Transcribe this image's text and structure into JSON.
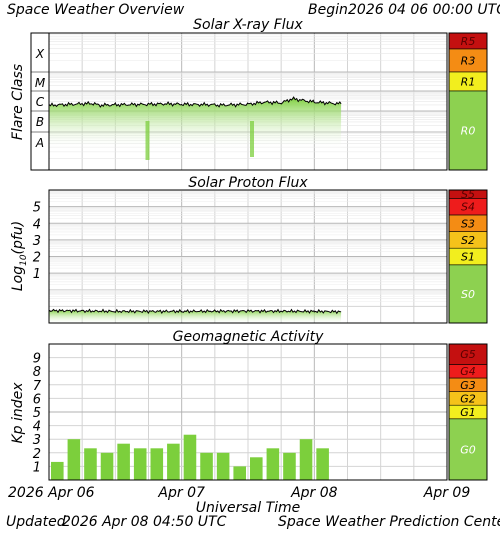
{
  "header": {
    "left": "Space Weather Overview",
    "begin_label": "Begin",
    "begin_value": "2026 04 06 00:00 UTC"
  },
  "footer": {
    "updated_label": "Updated",
    "updated_value": "2026 Apr 08 04:50 UTC",
    "credit": "Space Weather Prediction Center"
  },
  "colors": {
    "data_green": "#7ccf3c",
    "scale_green": "#8dd150",
    "yellow": "#f2ee1e",
    "yellow_orange": "#f5c21a",
    "orange": "#f48c14",
    "red": "#ee1c1c",
    "dark_red": "#c41010",
    "gridline": "#d4d4d4"
  },
  "chart_data": [
    {
      "type": "line",
      "title": "Solar X-ray Flux",
      "ylabel": "Flare Class",
      "class_labels": [
        "A",
        "B",
        "C",
        "M",
        "X"
      ],
      "scale_labels": [
        "R0",
        "R1",
        "R3",
        "R5"
      ],
      "x": [
        "2026-04-06 00:00",
        "2026-04-06 06:00",
        "2026-04-06 08:00",
        "2026-04-06 09:00",
        "2026-04-06 12:00",
        "2026-04-06 18:00",
        "2026-04-06 21:00",
        "2026-04-07 00:00",
        "2026-04-07 06:00",
        "2026-04-07 06:30",
        "2026-04-07 12:00",
        "2026-04-07 15:00",
        "2026-04-07 18:00",
        "2026-04-07 20:00",
        "2026-04-08 00:00",
        "2026-04-08 04:50"
      ],
      "series": [
        {
          "values": [
            2.3e-07,
            2.6e-07,
            2.7e-07,
            2.3e-07,
            2.4e-07,
            2.5e-07,
            2.6e-07,
            2.5e-07,
            2.4e-07,
            2.3e-07,
            2.5e-07,
            3e-07,
            2.8e-07,
            4e-07,
            3e-07,
            2.6e-07
          ]
        }
      ],
      "ylim": [
        "A",
        "X"
      ]
    },
    {
      "type": "line",
      "title": "Solar Proton Flux",
      "ylabel": "Log10(pfu)",
      "ylabel_main": "Log",
      "ylabel_sub": "10",
      "ylabel_unit": "(pfu)",
      "yticks": [
        "1",
        "2",
        "3",
        "4",
        "5"
      ],
      "scale_labels": [
        "S0",
        "S1",
        "S2",
        "S3",
        "S4",
        "S5"
      ],
      "x": [
        "2026-04-06 00:00",
        "2026-04-06 12:00",
        "2026-04-07 00:00",
        "2026-04-07 12:00",
        "2026-04-08 00:00",
        "2026-04-08 04:50"
      ],
      "series": [
        {
          "values": [
            -1.25,
            -1.3,
            -1.3,
            -1.28,
            -1.3,
            -1.32
          ]
        }
      ],
      "ylim": [
        -2,
        6
      ]
    },
    {
      "type": "bar",
      "title": "Geomagnetic Activity",
      "ylabel": "Kp index",
      "yticks": [
        "1",
        "2",
        "3",
        "4",
        "5",
        "6",
        "7",
        "8",
        "9"
      ],
      "scale_labels": [
        "G0",
        "G1",
        "G2",
        "G3",
        "G4",
        "G5"
      ],
      "values": [
        1.33,
        3.0,
        2.33,
        2.0,
        2.67,
        2.33,
        2.33,
        2.67,
        3.33,
        2.0,
        2.0,
        1.0,
        1.67,
        2.33,
        2.0,
        3.0,
        2.33
      ],
      "ylim": [
        0,
        10
      ],
      "xlabel": "Universal Time",
      "xticks": [
        "2026 Apr 06",
        "Apr 07",
        "Apr 08",
        "Apr 09"
      ]
    }
  ]
}
